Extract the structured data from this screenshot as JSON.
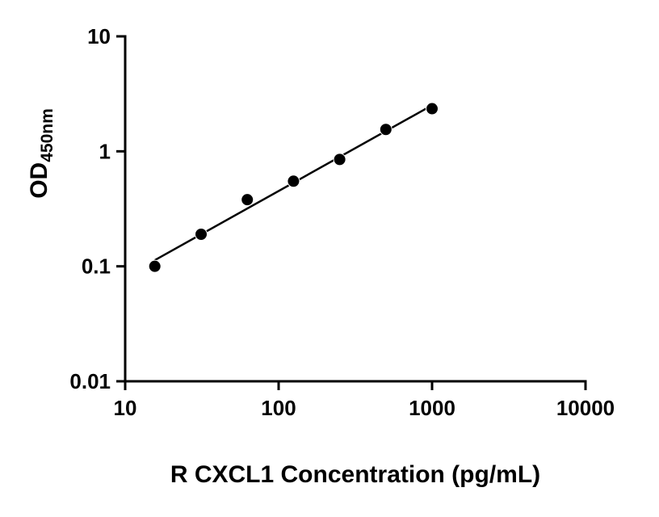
{
  "chart_data": {
    "type": "scatter",
    "title": "",
    "xlabel": "R CXCL1 Concentration (pg/mL)",
    "ylabel": "OD450nm",
    "ylabel_main": "OD",
    "ylabel_sub": "450nm",
    "x_scale": "log",
    "y_scale": "log",
    "xlim": [
      10,
      10000
    ],
    "ylim": [
      0.01,
      10
    ],
    "x_ticks": [
      10,
      100,
      1000,
      10000
    ],
    "x_tick_labels": [
      "10",
      "100",
      "1000",
      "10000"
    ],
    "y_ticks": [
      0.01,
      0.1,
      1,
      10
    ],
    "y_tick_labels": [
      "0.01",
      "0.1",
      "1",
      "10"
    ],
    "x": [
      15.6,
      31.25,
      62.5,
      125,
      250,
      500,
      1000
    ],
    "y": [
      0.1,
      0.19,
      0.38,
      0.55,
      0.85,
      1.55,
      2.35
    ],
    "trend": "linear-fit-loglog",
    "grid": false,
    "legend": "none",
    "marker_color": "#000000",
    "line_color": "#000000",
    "axis_color": "#000000",
    "background_color": "#ffffff"
  }
}
